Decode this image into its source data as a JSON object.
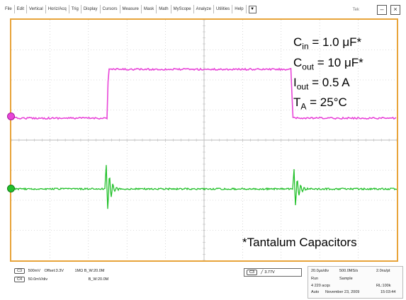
{
  "menu": {
    "items": [
      "File",
      "Edit",
      "Vertical",
      "Horiz/Acq",
      "Trig",
      "Display",
      "Cursors",
      "Measure",
      "Mask",
      "Math",
      "MyScope",
      "Analyze",
      "Utilities",
      "Help"
    ],
    "more_arrow": "▼",
    "tab_label": "Tek",
    "minimize_label": "–",
    "close_label": "×"
  },
  "annotations": {
    "cin_var": "C",
    "cin_sub": "in",
    "cin_val": " = 1.0 μF*",
    "cout_var": "C",
    "cout_sub": "out",
    "cout_val": " = 10 μF*",
    "iout_var": "I",
    "iout_sub": "out",
    "iout_val": " = 0.5 A",
    "ta_var": "T",
    "ta_sub": "A",
    "ta_val": " = 25°C",
    "footnote": "*Tantalum Capacitors"
  },
  "waveforms": {
    "ch1_color": "#e845d8",
    "ch2_color": "#22c02a",
    "grid_color": "#bcbcbc",
    "border_color": "#e8a43a"
  },
  "status": {
    "ch1_label": "C3",
    "ch1_scale": "500mV",
    "ch1_offset": "Offset:3.3V",
    "ch1_bw": "1MΩ  B_W:20.0M",
    "ch2_label": "C4",
    "ch2_scale": "50.0mV/div",
    "ch2_bw": "B_W:20.0M",
    "trig_label": "C3",
    "trig_level": "3.77V",
    "timebase": "20.0μs/div",
    "samplerate": "500.0MS/s",
    "pts_rate": "2.0ns/pt",
    "mode": "Run",
    "acq": "Sample",
    "acqs": "4 220 acqs",
    "rl": "RL:100k",
    "date_label": "Auto",
    "date": "November 23, 2009",
    "time": "15:03:44"
  }
}
